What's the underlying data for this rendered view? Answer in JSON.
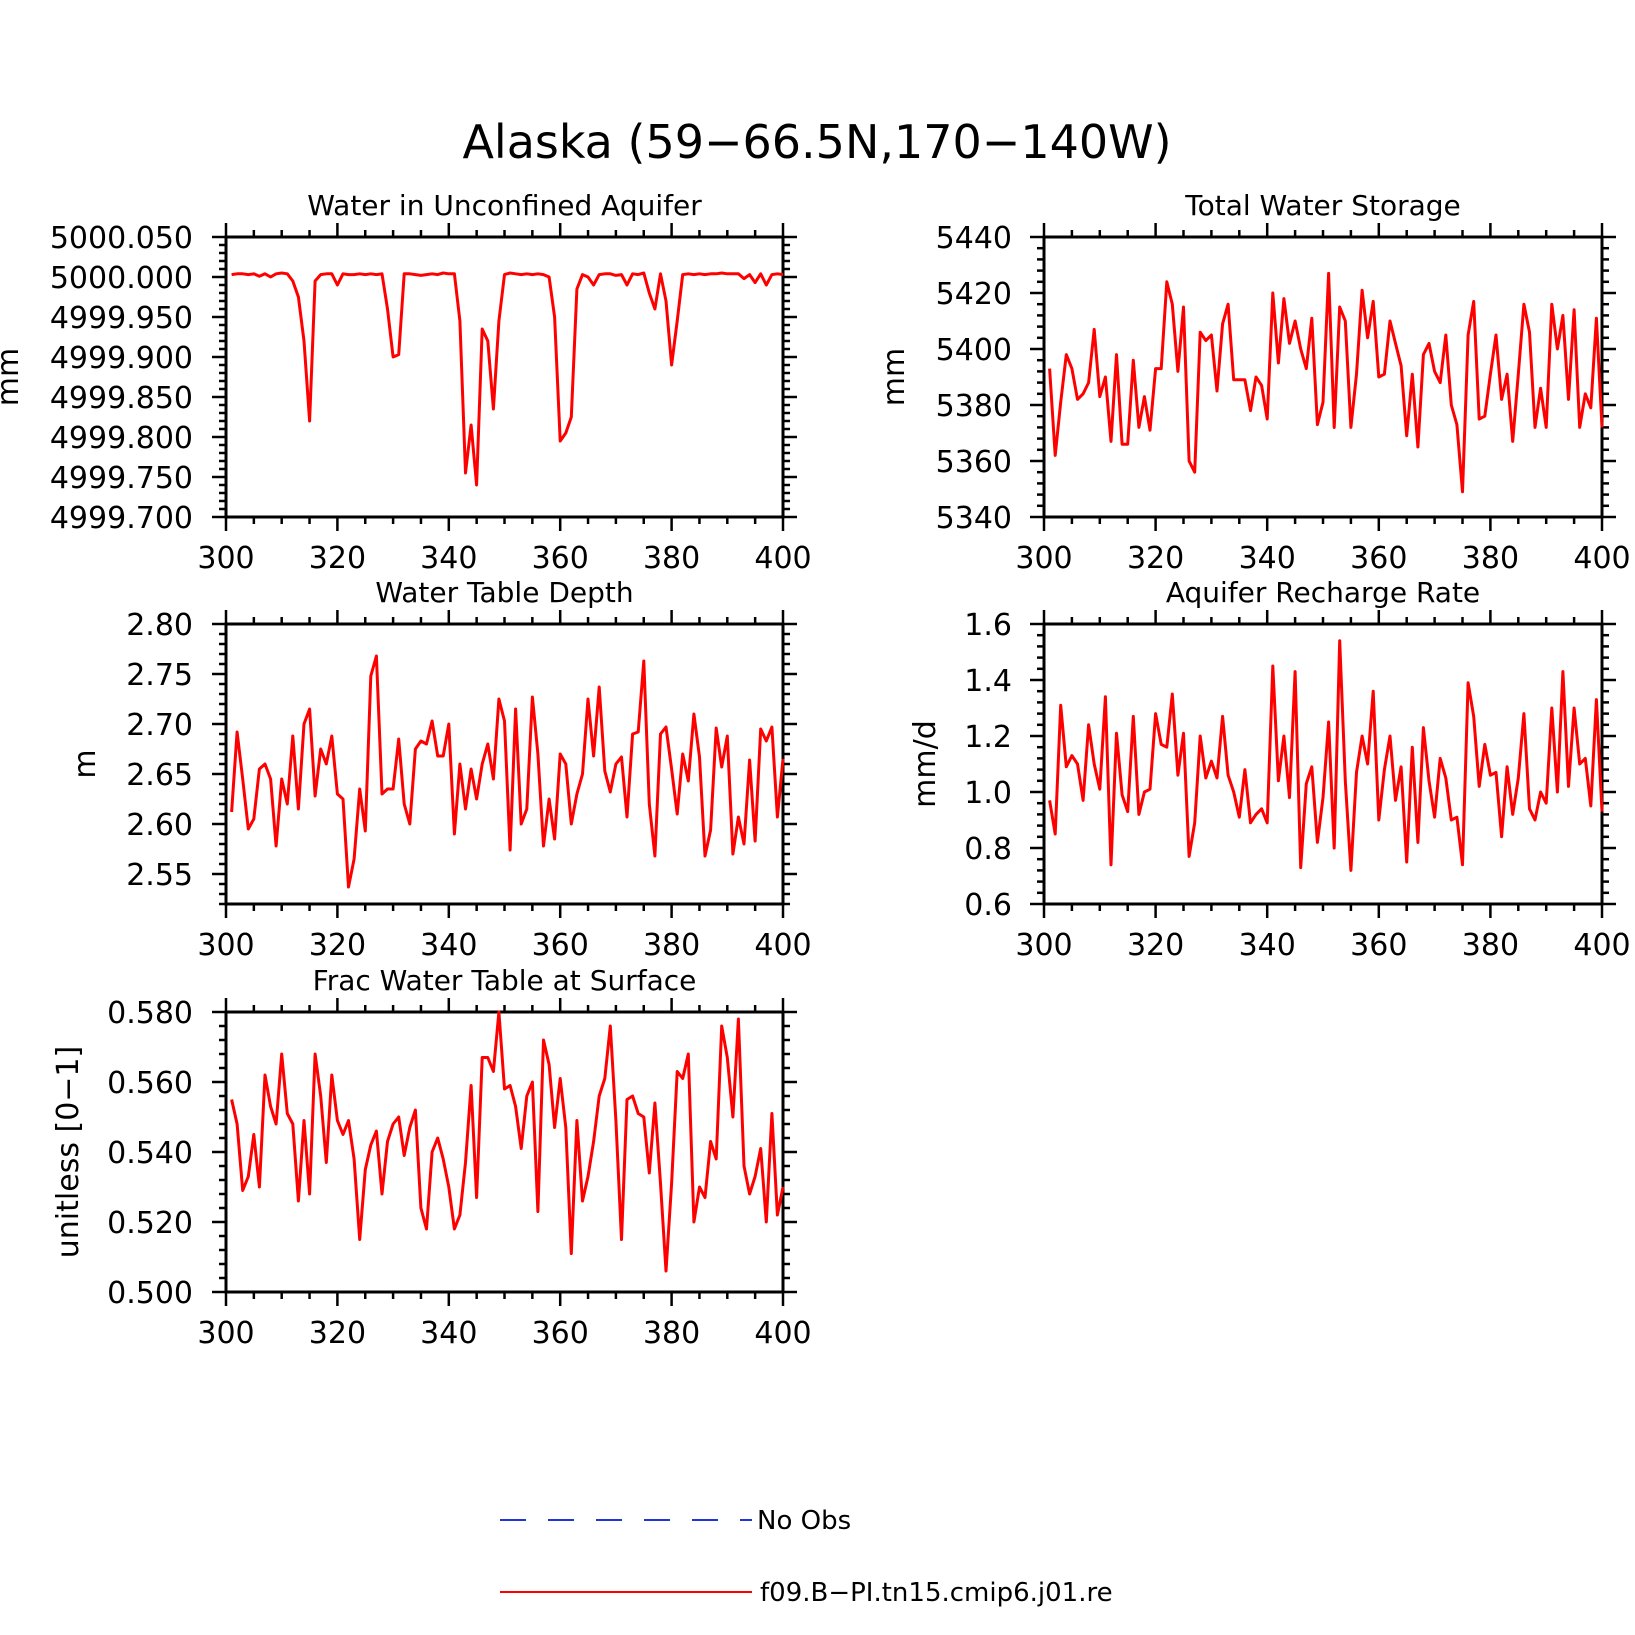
{
  "title": "Alaska (59−66.5N,170−140W)",
  "series_color": "#ff0000",
  "legend": {
    "entries": [
      {
        "label": "No Obs",
        "color": "#2233dd",
        "style": "dashed"
      },
      {
        "label": "f09.B−PI.tn15.cmip6.j01.re",
        "color": "#ff0000",
        "style": "solid"
      }
    ]
  },
  "chart_data": [
    {
      "type": "line",
      "title": "Water in Unconfined Aquifer",
      "ylabel": "mm",
      "xlim": [
        300,
        400
      ],
      "ylim": [
        4999.7,
        5000.05
      ],
      "xticks": [
        300,
        320,
        340,
        360,
        380,
        400
      ],
      "xtick_labels": [
        "300",
        "320",
        "340",
        "360",
        "380",
        "400"
      ],
      "yticks": [
        4999.7,
        4999.75,
        4999.8,
        4999.85,
        4999.9,
        4999.95,
        5000.0,
        5000.05
      ],
      "ytick_labels": [
        "4999.700",
        "4999.750",
        "4999.800",
        "4999.850",
        "4999.900",
        "4999.950",
        "5000.000",
        "5000.050"
      ],
      "series": [
        {
          "x_start": 301,
          "values": [
            5000.003,
            5000.004,
            5000.004,
            5000.003,
            5000.004,
            5000.001,
            5000.004,
            5000.0,
            5000.004,
            5000.005,
            5000.004,
            4999.995,
            4999.975,
            4999.92,
            4999.82,
            4999.995,
            5000.003,
            5000.004,
            5000.004,
            4999.99,
            5000.004,
            5000.003,
            5000.003,
            5000.004,
            5000.003,
            5000.004,
            5000.003,
            5000.004,
            4999.96,
            4999.9,
            4999.903,
            5000.004,
            5000.004,
            5000.003,
            5000.002,
            5000.003,
            5000.004,
            5000.003,
            5000.005,
            5000.004,
            5000.004,
            4999.945,
            4999.755,
            4999.815,
            4999.74,
            4999.935,
            4999.92,
            4999.835,
            4999.945,
            5000.003,
            5000.005,
            5000.004,
            5000.003,
            5000.004,
            5000.003,
            5000.004,
            5000.003,
            5000.0,
            4999.95,
            4999.795,
            4999.805,
            4999.825,
            4999.985,
            5000.003,
            5000.0,
            4999.99,
            5000.003,
            5000.004,
            5000.004,
            5000.002,
            5000.003,
            4999.99,
            5000.004,
            5000.003,
            5000.005,
            4999.98,
            4999.96,
            5000.004,
            4999.97,
            4999.89,
            4999.945,
            5000.003,
            5000.004,
            5000.003,
            5000.004,
            5000.003,
            5000.004,
            5000.004,
            5000.005,
            5000.004,
            5000.004,
            5000.004,
            4999.998,
            5000.003,
            4999.993,
            5000.004,
            4999.99,
            5000.003,
            5000.004,
            5000.003
          ]
        }
      ]
    },
    {
      "type": "line",
      "title": "Total Water Storage",
      "ylabel": "mm",
      "xlim": [
        300,
        400
      ],
      "ylim": [
        5340,
        5440
      ],
      "xticks": [
        300,
        320,
        340,
        360,
        380,
        400
      ],
      "xtick_labels": [
        "300",
        "320",
        "340",
        "360",
        "380",
        "400"
      ],
      "yticks": [
        5340,
        5360,
        5380,
        5400,
        5420,
        5440
      ],
      "ytick_labels": [
        "5340",
        "5360",
        "5380",
        "5400",
        "5420",
        "5440"
      ],
      "series": [
        {
          "x_start": 301,
          "values": [
            5393,
            5362,
            5381,
            5398,
            5393,
            5382,
            5384,
            5388,
            5407,
            5383,
            5390,
            5367,
            5398,
            5366,
            5366,
            5396,
            5372,
            5383,
            5371,
            5393,
            5393,
            5424,
            5416,
            5392,
            5415,
            5360,
            5356,
            5406,
            5403,
            5405,
            5385,
            5409,
            5416,
            5389,
            5389,
            5389,
            5378,
            5390,
            5387,
            5375,
            5420,
            5395,
            5418,
            5402,
            5410,
            5400,
            5393,
            5411,
            5373,
            5381,
            5427,
            5372,
            5415,
            5410,
            5372,
            5391,
            5421,
            5404,
            5417,
            5390,
            5391,
            5410,
            5402,
            5394,
            5369,
            5391,
            5365,
            5398,
            5402,
            5392,
            5388,
            5405,
            5380,
            5373,
            5349,
            5405,
            5417,
            5375,
            5376,
            5391,
            5405,
            5382,
            5391,
            5367,
            5391,
            5416,
            5406,
            5372,
            5386,
            5372,
            5416,
            5400,
            5412,
            5382,
            5414,
            5372,
            5384,
            5379,
            5411,
            5372
          ]
        }
      ]
    },
    {
      "type": "line",
      "title": "Water Table Depth",
      "ylabel": "m",
      "xlim": [
        300,
        400
      ],
      "ylim": [
        2.52,
        2.8
      ],
      "xticks": [
        300,
        320,
        340,
        360,
        380,
        400
      ],
      "xtick_labels": [
        "300",
        "320",
        "340",
        "360",
        "380",
        "400"
      ],
      "yticks": [
        2.55,
        2.6,
        2.65,
        2.7,
        2.75,
        2.8
      ],
      "ytick_labels": [
        "2.55",
        "2.60",
        "2.65",
        "2.70",
        "2.75",
        "2.80"
      ],
      "series": [
        {
          "x_start": 301,
          "values": [
            2.612,
            2.692,
            2.645,
            2.595,
            2.605,
            2.655,
            2.66,
            2.645,
            2.578,
            2.645,
            2.62,
            2.688,
            2.615,
            2.7,
            2.715,
            2.628,
            2.675,
            2.66,
            2.688,
            2.63,
            2.625,
            2.537,
            2.565,
            2.635,
            2.593,
            2.748,
            2.768,
            2.63,
            2.635,
            2.635,
            2.685,
            2.62,
            2.6,
            2.675,
            2.683,
            2.68,
            2.703,
            2.668,
            2.668,
            2.7,
            2.59,
            2.66,
            2.615,
            2.655,
            2.625,
            2.66,
            2.68,
            2.645,
            2.725,
            2.703,
            2.574,
            2.715,
            2.6,
            2.615,
            2.727,
            2.67,
            2.578,
            2.625,
            2.585,
            2.67,
            2.66,
            2.6,
            2.63,
            2.65,
            2.725,
            2.668,
            2.737,
            2.653,
            2.632,
            2.66,
            2.667,
            2.607,
            2.69,
            2.692,
            2.763,
            2.62,
            2.568,
            2.69,
            2.697,
            2.655,
            2.61,
            2.67,
            2.643,
            2.71,
            2.667,
            2.568,
            2.594,
            2.696,
            2.657,
            2.688,
            2.57,
            2.607,
            2.58,
            2.664,
            2.583,
            2.695,
            2.683,
            2.697,
            2.607,
            2.665
          ]
        }
      ]
    },
    {
      "type": "line",
      "title": "Aquifer Recharge Rate",
      "ylabel": "mm/d",
      "xlim": [
        300,
        400
      ],
      "ylim": [
        0.6,
        1.6
      ],
      "xticks": [
        300,
        320,
        340,
        360,
        380,
        400
      ],
      "xtick_labels": [
        "300",
        "320",
        "340",
        "360",
        "380",
        "400"
      ],
      "yticks": [
        0.6,
        0.8,
        1.0,
        1.2,
        1.4,
        1.6
      ],
      "ytick_labels": [
        "0.6",
        "0.8",
        "1.0",
        "1.2",
        "1.4",
        "1.6"
      ],
      "series": [
        {
          "x_start": 301,
          "values": [
            0.97,
            0.85,
            1.31,
            1.09,
            1.13,
            1.1,
            0.97,
            1.24,
            1.1,
            1.01,
            1.34,
            0.74,
            1.21,
            0.99,
            0.93,
            1.27,
            0.92,
            1.0,
            1.01,
            1.28,
            1.17,
            1.16,
            1.35,
            1.06,
            1.21,
            0.77,
            0.89,
            1.2,
            1.05,
            1.11,
            1.05,
            1.27,
            1.06,
            1.0,
            0.91,
            1.08,
            0.89,
            0.92,
            0.94,
            0.89,
            1.45,
            1.04,
            1.2,
            0.98,
            1.43,
            0.73,
            1.03,
            1.09,
            0.82,
            0.98,
            1.25,
            0.8,
            1.54,
            1.04,
            0.72,
            1.07,
            1.2,
            1.1,
            1.36,
            0.9,
            1.08,
            1.2,
            0.97,
            1.09,
            0.75,
            1.16,
            0.82,
            1.23,
            1.04,
            0.91,
            1.12,
            1.05,
            0.9,
            0.91,
            0.74,
            1.39,
            1.27,
            1.02,
            1.17,
            1.06,
            1.07,
            0.84,
            1.09,
            0.92,
            1.05,
            1.28,
            0.94,
            0.9,
            1.0,
            0.96,
            1.3,
            1.0,
            1.43,
            1.02,
            1.3,
            1.1,
            1.12,
            0.95,
            1.33,
            0.93
          ]
        }
      ]
    },
    {
      "type": "line",
      "title": "Frac Water Table at Surface",
      "ylabel": "unitless [0−1]",
      "xlim": [
        300,
        400
      ],
      "ylim": [
        0.5,
        0.58
      ],
      "xticks": [
        300,
        320,
        340,
        360,
        380,
        400
      ],
      "xtick_labels": [
        "300",
        "320",
        "340",
        "360",
        "380",
        "400"
      ],
      "yticks": [
        0.5,
        0.52,
        0.54,
        0.56,
        0.58
      ],
      "ytick_labels": [
        "0.500",
        "0.520",
        "0.540",
        "0.560",
        "0.580"
      ],
      "series": [
        {
          "x_start": 301,
          "values": [
            0.555,
            0.548,
            0.529,
            0.533,
            0.545,
            0.53,
            0.562,
            0.553,
            0.548,
            0.568,
            0.551,
            0.548,
            0.526,
            0.549,
            0.528,
            0.568,
            0.556,
            0.537,
            0.562,
            0.549,
            0.545,
            0.549,
            0.538,
            0.515,
            0.535,
            0.542,
            0.546,
            0.528,
            0.543,
            0.548,
            0.55,
            0.539,
            0.547,
            0.552,
            0.524,
            0.518,
            0.54,
            0.544,
            0.538,
            0.53,
            0.518,
            0.522,
            0.537,
            0.559,
            0.527,
            0.567,
            0.567,
            0.563,
            0.58,
            0.558,
            0.559,
            0.553,
            0.541,
            0.556,
            0.56,
            0.523,
            0.572,
            0.565,
            0.547,
            0.561,
            0.547,
            0.511,
            0.549,
            0.526,
            0.533,
            0.543,
            0.556,
            0.561,
            0.576,
            0.549,
            0.515,
            0.555,
            0.556,
            0.551,
            0.55,
            0.534,
            0.554,
            0.531,
            0.506,
            0.531,
            0.563,
            0.561,
            0.568,
            0.52,
            0.53,
            0.527,
            0.543,
            0.538,
            0.576,
            0.567,
            0.55,
            0.578,
            0.536,
            0.528,
            0.533,
            0.541,
            0.52,
            0.551,
            0.522,
            0.53
          ]
        }
      ]
    }
  ]
}
